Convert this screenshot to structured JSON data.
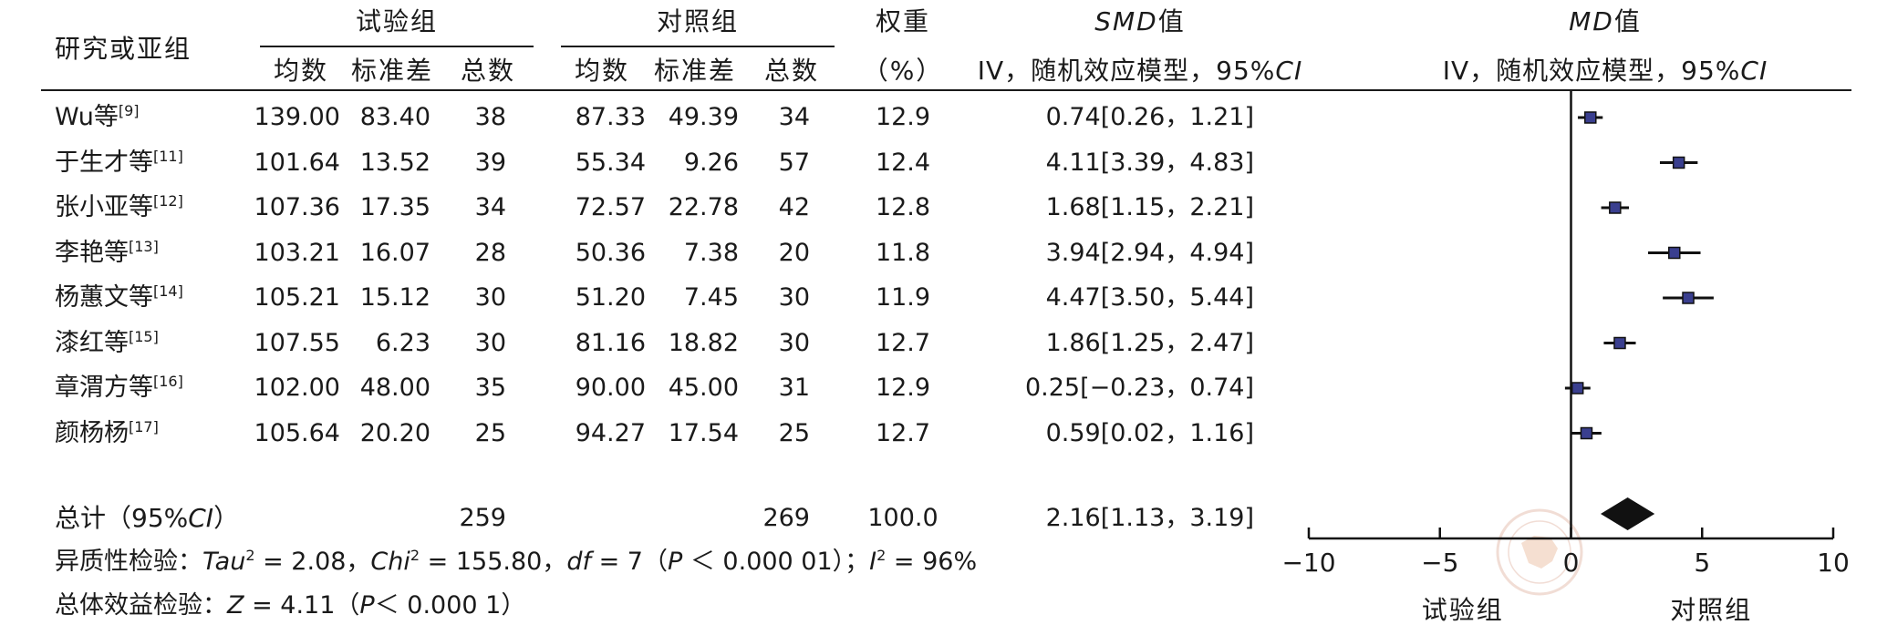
{
  "header": {
    "study_col": "研究或亚组",
    "exp_group": "试验组",
    "ctrl_group": "对照组",
    "mean": "均数",
    "sd": "标准差",
    "total": "总数",
    "weight": "权重",
    "weight_unit": "（%）",
    "smd_title_italic": "SMD",
    "smd_title_rest": "值",
    "smd_method_a": "IV，随机效应模型，95%",
    "smd_method_b": "CI",
    "md_title_italic": "MD",
    "md_title_rest": "值",
    "md_method_a": "IV，随机效应模型，95%",
    "md_method_b": "CI"
  },
  "rows": [
    {
      "study": "Wu等",
      "ref": "[9]",
      "e_mean": "139.00",
      "e_sd": "83.40",
      "e_n": "38",
      "c_mean": "87.33",
      "c_sd": "49.39",
      "c_n": "34",
      "weight": "12.9",
      "ci": "0.74[0.26，1.21]"
    },
    {
      "study": "于生才等",
      "ref": "[11]",
      "e_mean": "101.64",
      "e_sd": "13.52",
      "e_n": "39",
      "c_mean": "55.34",
      "c_sd": "9.26",
      "c_n": "57",
      "weight": "12.4",
      "ci": "4.11[3.39，4.83]"
    },
    {
      "study": "张小亚等",
      "ref": "[12]",
      "e_mean": "107.36",
      "e_sd": "17.35",
      "e_n": "34",
      "c_mean": "72.57",
      "c_sd": "22.78",
      "c_n": "42",
      "weight": "12.8",
      "ci": "1.68[1.15，2.21]"
    },
    {
      "study": "李艳等",
      "ref": "[13]",
      "e_mean": "103.21",
      "e_sd": "16.07",
      "e_n": "28",
      "c_mean": "50.36",
      "c_sd": "7.38",
      "c_n": "20",
      "weight": "11.8",
      "ci": "3.94[2.94，4.94]"
    },
    {
      "study": "杨蕙文等",
      "ref": "[14]",
      "e_mean": "105.21",
      "e_sd": "15.12",
      "e_n": "30",
      "c_mean": "51.20",
      "c_sd": "7.45",
      "c_n": "30",
      "weight": "11.9",
      "ci": "4.47[3.50，5.44]"
    },
    {
      "study": "漆红等",
      "ref": "[15]",
      "e_mean": "107.55",
      "e_sd": "6.23",
      "e_n": "30",
      "c_mean": "81.16",
      "c_sd": "18.82",
      "c_n": "30",
      "weight": "12.7",
      "ci": "1.86[1.25，2.47]"
    },
    {
      "study": "章渭方等",
      "ref": "[16]",
      "e_mean": "102.00",
      "e_sd": "48.00",
      "e_n": "35",
      "c_mean": "90.00",
      "c_sd": "45.00",
      "c_n": "31",
      "weight": "12.9",
      "ci": "0.25[−0.23，0.74]"
    },
    {
      "study": "颜杨杨",
      "ref": "[17]",
      "e_mean": "105.64",
      "e_sd": "20.20",
      "e_n": "25",
      "c_mean": "94.27",
      "c_sd": "17.54",
      "c_n": "25",
      "weight": "12.7",
      "ci": "0.59[0.02，1.16]"
    }
  ],
  "total": {
    "label_a": "总计（95%",
    "label_b": "CI",
    "label_c": "）",
    "e_n": "259",
    "c_n": "269",
    "weight": "100.0",
    "ci": "2.16[1.13，3.19]"
  },
  "heterogeneity": {
    "prefix": "异质性检验：",
    "tau_sym": "Tau",
    "tau_exp": "2",
    "tau_val": " = 2.08，",
    "chi_sym": "Chi",
    "chi_exp": "2",
    "chi_val": " = 155.80，",
    "df_sym": "df",
    "df_val": " = 7（",
    "p_sym": "P",
    "p_val": " ＜ 0.000 01）；",
    "i_sym": "I",
    "i_exp": "2",
    "i_val": " = 96%"
  },
  "overall_effect": {
    "prefix": "总体效益检验：",
    "z_sym": "Z",
    "z_val": " = 4.11（",
    "p_sym": "P",
    "p_val": "＜ 0.000 1）"
  },
  "chart_data": {
    "type": "forest",
    "xlim": [
      -10,
      10
    ],
    "ticks": [
      -10,
      -5,
      0,
      5,
      10
    ],
    "tick_labels": [
      "−10",
      "−5",
      "0",
      "5",
      "10"
    ],
    "favours_left": "试验组",
    "favours_right": "对照组",
    "studies": [
      {
        "name": "Wu等[9]",
        "est": 0.74,
        "lo": 0.26,
        "hi": 1.21
      },
      {
        "name": "于生才等[11]",
        "est": 4.11,
        "lo": 3.39,
        "hi": 4.83
      },
      {
        "name": "张小亚等[12]",
        "est": 1.68,
        "lo": 1.15,
        "hi": 2.21
      },
      {
        "name": "李艳等[13]",
        "est": 3.94,
        "lo": 2.94,
        "hi": 4.94
      },
      {
        "name": "杨蕙文等[14]",
        "est": 4.47,
        "lo": 3.5,
        "hi": 5.44
      },
      {
        "name": "漆红等[15]",
        "est": 1.86,
        "lo": 1.25,
        "hi": 2.47
      },
      {
        "name": "章渭方等[16]",
        "est": 0.25,
        "lo": -0.23,
        "hi": 0.74
      },
      {
        "name": "颜杨杨[17]",
        "est": 0.59,
        "lo": 0.02,
        "hi": 1.16
      }
    ],
    "pooled": {
      "est": 2.16,
      "lo": 1.13,
      "hi": 3.19
    },
    "square_color": "#3a3f8f",
    "line_color": "#111111"
  }
}
